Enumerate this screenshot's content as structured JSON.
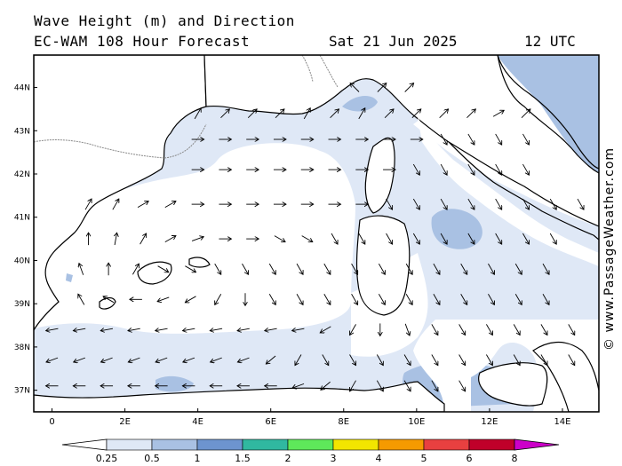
{
  "title": {
    "line1": "Wave Height (m) and Direction",
    "line2": "EC-WAM 108 Hour Forecast",
    "date": "Sat 21 Jun 2025",
    "time": "12 UTC"
  },
  "credit": "© www.PassageWeather.com",
  "axes": {
    "lon_labels": [
      "0",
      "2E",
      "4E",
      "6E",
      "8E",
      "10E",
      "12E",
      "14E"
    ],
    "lat_labels": [
      "44N",
      "43N",
      "42N",
      "41N",
      "40N",
      "39N",
      "38N",
      "37N"
    ],
    "lon_range": [
      -0.5,
      15
    ],
    "lat_range": [
      36.5,
      44.75
    ]
  },
  "legend": {
    "ticks": [
      "0.25",
      "0.5",
      "1",
      "1.5",
      "2",
      "3",
      "4",
      "5",
      "6",
      "8"
    ],
    "colors": [
      "#ffffff",
      "#dfe8f6",
      "#a9c1e3",
      "#6d94cf",
      "#30b8a0",
      "#5ee85a",
      "#f2e500",
      "#f59a00",
      "#e84040",
      "#c0002a",
      "#cc00c8"
    ]
  },
  "colors": {
    "land": "#ffffff",
    "coast": "#000000",
    "wave_light": "#dfe8f6",
    "wave_mid": "#a9c1e3"
  },
  "arrow_rows": [
    {
      "lat": 44.0,
      "lon_start": 8.3,
      "dirs": [
        135,
        45,
        45
      ]
    },
    {
      "lat": 43.4,
      "lon_start": 4.0,
      "dirs": [
        60,
        45,
        45,
        45,
        60,
        45,
        60,
        45,
        45,
        45,
        45,
        30,
        45
      ]
    },
    {
      "lat": 42.8,
      "lon_start": 4.0,
      "dirs": [
        0,
        0,
        0,
        0,
        0,
        0,
        0,
        0,
        0,
        300,
        300,
        300,
        300
      ]
    },
    {
      "lat": 42.1,
      "lon_start": 4.0,
      "dirs": [
        0,
        0,
        0,
        0,
        0,
        0,
        0,
        0,
        300,
        300,
        300,
        300,
        300
      ]
    },
    {
      "lat": 41.3,
      "lon_start": 1.0,
      "dirs": [
        60,
        60,
        30,
        30,
        0,
        0,
        0,
        0,
        0,
        0,
        0,
        300,
        300,
        300,
        300,
        300,
        300,
        300,
        300,
        330
      ]
    },
    {
      "lat": 40.5,
      "lon_start": 1.0,
      "dirs": [
        90,
        80,
        60,
        30,
        20,
        0,
        0,
        330,
        330,
        300,
        300,
        300,
        300,
        300,
        300,
        300,
        300,
        300
      ]
    },
    {
      "lat": 39.8,
      "lon_start": 0.8,
      "dirs": [
        110,
        90,
        60,
        330,
        330,
        300,
        300,
        300,
        300,
        300,
        300,
        300,
        300,
        300,
        300,
        300,
        300,
        300
      ]
    },
    {
      "lat": 39.1,
      "lon_start": 0.8,
      "dirs": [
        120,
        150,
        180,
        200,
        210,
        240,
        270,
        300,
        300,
        300,
        300,
        300,
        300,
        300,
        300,
        300,
        300,
        300
      ]
    },
    {
      "lat": 38.4,
      "lon_start": 0.0,
      "dirs": [
        190,
        190,
        190,
        190,
        190,
        190,
        190,
        190,
        190,
        190,
        210,
        240,
        270,
        290,
        300,
        300,
        300,
        300,
        300,
        300
      ]
    },
    {
      "lat": 37.7,
      "lon_start": 0.0,
      "dirs": [
        200,
        200,
        200,
        200,
        200,
        200,
        200,
        200,
        220,
        240,
        300,
        300,
        300,
        300,
        300,
        300,
        300,
        300,
        300,
        300
      ]
    },
    {
      "lat": 37.1,
      "lon_start": 0.0,
      "dirs": [
        180,
        180,
        180,
        180,
        180,
        180,
        180,
        180,
        180,
        200,
        220,
        240,
        300,
        300,
        300,
        300
      ]
    }
  ]
}
